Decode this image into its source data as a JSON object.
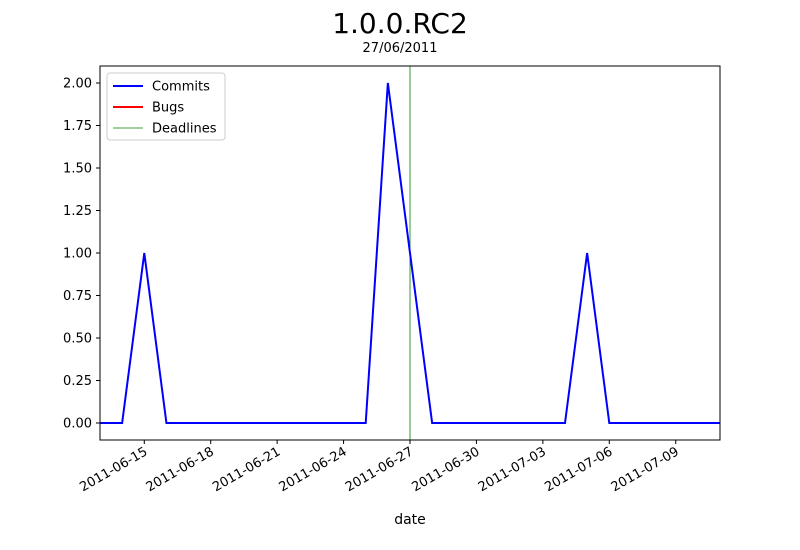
{
  "chart_data": {
    "type": "line",
    "title": "1.0.0.RC2",
    "subtitle": "27/06/2011",
    "xlabel": "date",
    "ylabel": "",
    "xlim": [
      "2011-06-13",
      "2011-07-11"
    ],
    "ylim": [
      -0.1,
      2.1
    ],
    "x_ticks": [
      "2011-06-15",
      "2011-06-18",
      "2011-06-21",
      "2011-06-24",
      "2011-06-27",
      "2011-06-30",
      "2011-07-03",
      "2011-07-06",
      "2011-07-09"
    ],
    "y_ticks": [
      "0.00",
      "0.25",
      "0.50",
      "0.75",
      "1.00",
      "1.25",
      "1.50",
      "1.75",
      "2.00"
    ],
    "grid": false,
    "legend_position": "top-left",
    "series": [
      {
        "name": "Commits",
        "color": "#0000ff",
        "points": [
          {
            "x": "2011-06-13",
            "y": 0
          },
          {
            "x": "2011-06-14",
            "y": 0
          },
          {
            "x": "2011-06-15",
            "y": 1
          },
          {
            "x": "2011-06-16",
            "y": 0
          },
          {
            "x": "2011-06-25",
            "y": 0
          },
          {
            "x": "2011-06-26",
            "y": 2
          },
          {
            "x": "2011-06-28",
            "y": 0
          },
          {
            "x": "2011-07-04",
            "y": 0
          },
          {
            "x": "2011-07-05",
            "y": 1
          },
          {
            "x": "2011-07-06",
            "y": 0
          },
          {
            "x": "2011-07-11",
            "y": 0
          }
        ]
      },
      {
        "name": "Bugs",
        "color": "#ff0000",
        "points": []
      }
    ],
    "deadlines": {
      "name": "Deadlines",
      "color": "#008000",
      "dates": [
        "2011-06-27"
      ]
    }
  }
}
